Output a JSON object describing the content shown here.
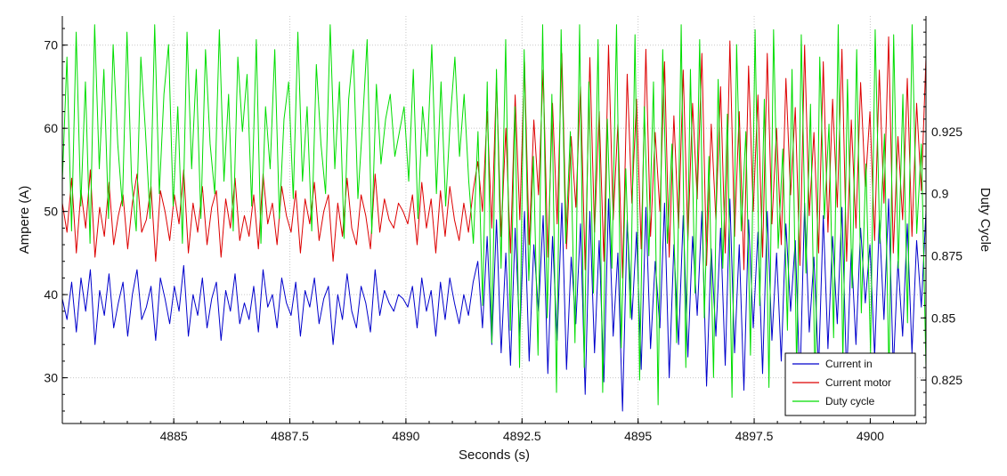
{
  "chart_data": {
    "type": "line",
    "xlabel": "Seconds (s)",
    "ylabel_left": "Ampere (A)",
    "ylabel_right": "Duty Cycle",
    "xlim": [
      4882.6,
      4901.2
    ],
    "ylim_left": [
      24.5,
      73.5
    ],
    "ylim_right": [
      0.8075,
      0.9715
    ],
    "x_ticks": [
      4885,
      4887.5,
      4890,
      4892.5,
      4895,
      4897.5,
      4900
    ],
    "x_tick_labels": [
      "4885",
      "4887.5",
      "4890",
      "4892.5",
      "4895",
      "4897.5",
      "4900"
    ],
    "y_left_ticks": [
      30,
      40,
      50,
      60,
      70
    ],
    "y_left_tick_labels": [
      "30",
      "40",
      "50",
      "60",
      "70"
    ],
    "y_right_ticks": [
      0.825,
      0.85,
      0.875,
      0.9,
      0.925
    ],
    "y_right_tick_labels": [
      "0.825",
      "0.85",
      "0.875",
      "0.9",
      "0.925"
    ],
    "grid": true,
    "legend_position": "bottom-right",
    "series": [
      {
        "name": "Current in",
        "color": "#0000cc",
        "axis": "left",
        "x_start": 4882.6,
        "x_end": 4901.2,
        "values": [
          39.5,
          37.0,
          41.5,
          35.5,
          42.0,
          38.0,
          43.0,
          34.0,
          40.5,
          37.5,
          42.5,
          36.0,
          39.0,
          41.5,
          35.0,
          40.0,
          43.0,
          37.0,
          38.5,
          41.0,
          34.5,
          42.0,
          39.5,
          36.5,
          41.0,
          38.0,
          43.5,
          35.0,
          40.0,
          37.5,
          42.0,
          36.0,
          39.5,
          41.5,
          34.5,
          40.5,
          38.0,
          42.5,
          36.5,
          39.0,
          37.0,
          41.0,
          35.5,
          43.0,
          38.5,
          40.0,
          36.0,
          42.0,
          39.0,
          37.5,
          41.5,
          35.0,
          40.5,
          38.5,
          42.0,
          36.5,
          39.5,
          41.0,
          34.0,
          40.0,
          37.0,
          42.5,
          38.0,
          36.0,
          41.0,
          39.0,
          35.5,
          43.0,
          37.5,
          40.5,
          39.0,
          38.0,
          40.0,
          39.5,
          38.5,
          41.0,
          36.0,
          42.0,
          38.0,
          40.5,
          35.0,
          41.5,
          37.0,
          42.0,
          39.0,
          36.5,
          40.0,
          37.5,
          41.5,
          44.0,
          36.0,
          47.0,
          34.0,
          49.0,
          33.0,
          45.0,
          31.5,
          48.0,
          35.0,
          50.0,
          32.0,
          46.0,
          38.0,
          49.5,
          30.5,
          47.0,
          34.5,
          51.0,
          31.0,
          44.5,
          36.5,
          48.5,
          28.0,
          50.0,
          33.0,
          46.5,
          29.5,
          51.5,
          35.0,
          45.0,
          26.0,
          49.0,
          37.0,
          47.5,
          31.0,
          50.5,
          33.5,
          44.0,
          36.0,
          51.0,
          30.0,
          46.0,
          34.0,
          49.5,
          32.5,
          47.0,
          37.5,
          50.0,
          29.0,
          45.5,
          35.0,
          48.0,
          31.5,
          51.5,
          33.0,
          46.0,
          28.5,
          49.0,
          36.0,
          47.5,
          30.5,
          50.0,
          34.5,
          45.0,
          32.0,
          48.5,
          38.0,
          46.5,
          29.0,
          51.0,
          35.5,
          44.5,
          31.0,
          49.5,
          33.5,
          47.0,
          36.5,
          50.5,
          30.0,
          45.5,
          34.0,
          48.0,
          39.0,
          46.0,
          32.5,
          49.0,
          37.0,
          51.5,
          31.0,
          44.0,
          35.0,
          48.5,
          33.0,
          46.5,
          38.5,
          50.0
        ]
      },
      {
        "name": "Current motor",
        "color": "#dd0000",
        "axis": "left",
        "x_start": 4882.6,
        "x_end": 4901.2,
        "values": [
          51.0,
          47.5,
          54.0,
          45.0,
          52.5,
          48.0,
          55.0,
          44.5,
          50.5,
          47.0,
          53.5,
          46.0,
          49.5,
          52.0,
          45.5,
          51.0,
          54.5,
          47.5,
          49.0,
          53.0,
          44.0,
          52.5,
          50.0,
          46.5,
          52.0,
          48.5,
          55.0,
          45.0,
          51.0,
          47.5,
          53.0,
          46.0,
          50.5,
          52.5,
          44.5,
          51.5,
          48.0,
          54.0,
          46.5,
          49.5,
          47.0,
          52.0,
          45.5,
          54.5,
          48.5,
          51.0,
          46.0,
          53.0,
          49.5,
          47.5,
          52.5,
          45.0,
          51.5,
          48.5,
          53.5,
          46.5,
          50.0,
          52.0,
          44.0,
          51.0,
          47.0,
          54.0,
          48.0,
          46.0,
          52.0,
          49.5,
          45.5,
          54.5,
          47.5,
          51.5,
          49.0,
          48.0,
          51.0,
          50.0,
          48.5,
          52.0,
          46.0,
          53.5,
          48.0,
          51.5,
          45.0,
          52.5,
          47.0,
          53.0,
          49.0,
          46.5,
          51.0,
          47.5,
          52.5,
          56.0,
          50.0,
          62.0,
          48.0,
          66.0,
          47.0,
          60.0,
          45.0,
          64.0,
          49.0,
          68.0,
          46.0,
          61.0,
          52.0,
          67.0,
          44.5,
          63.0,
          48.5,
          69.0,
          45.5,
          59.0,
          50.5,
          65.0,
          43.0,
          68.5,
          47.5,
          62.0,
          44.0,
          70.0,
          49.0,
          60.5,
          42.0,
          66.5,
          51.0,
          63.5,
          45.5,
          69.5,
          47.0,
          59.5,
          50.0,
          68.0,
          44.5,
          61.5,
          48.0,
          67.0,
          46.5,
          63.0,
          51.5,
          69.0,
          43.5,
          60.5,
          49.0,
          65.0,
          45.0,
          70.5,
          47.0,
          62.0,
          43.0,
          67.5,
          50.0,
          64.0,
          44.5,
          69.0,
          48.5,
          60.0,
          46.0,
          66.0,
          52.0,
          62.5,
          43.5,
          70.0,
          49.5,
          59.5,
          45.0,
          68.0,
          47.5,
          63.5,
          50.5,
          69.5,
          44.0,
          61.0,
          48.0,
          65.5,
          53.0,
          62.0,
          46.5,
          67.0,
          51.0,
          71.0,
          45.0,
          59.0,
          49.0,
          66.0,
          47.0,
          63.0,
          52.5,
          68.5
        ]
      },
      {
        "name": "Duty cycle",
        "color": "#00dd00",
        "axis": "right",
        "x_start": 4882.6,
        "x_end": 4901.2,
        "values": [
          0.905,
          0.955,
          0.885,
          0.965,
          0.895,
          0.945,
          0.88,
          0.968,
          0.91,
          0.95,
          0.89,
          0.96,
          0.92,
          0.895,
          0.965,
          0.905,
          0.885,
          0.955,
          0.925,
          0.89,
          0.968,
          0.9,
          0.94,
          0.96,
          0.895,
          0.935,
          0.88,
          0.965,
          0.91,
          0.95,
          0.89,
          0.958,
          0.92,
          0.9,
          0.966,
          0.905,
          0.94,
          0.885,
          0.955,
          0.925,
          0.948,
          0.895,
          0.962,
          0.88,
          0.935,
          0.91,
          0.958,
          0.89,
          0.93,
          0.945,
          0.898,
          0.965,
          0.905,
          0.935,
          0.885,
          0.952,
          0.92,
          0.9,
          0.968,
          0.91,
          0.945,
          0.882,
          0.938,
          0.958,
          0.898,
          0.928,
          0.962,
          0.884,
          0.944,
          0.912,
          0.93,
          0.94,
          0.915,
          0.925,
          0.935,
          0.905,
          0.95,
          0.89,
          0.935,
          0.915,
          0.96,
          0.9,
          0.945,
          0.895,
          0.93,
          0.955,
          0.915,
          0.94,
          0.905,
          0.88,
          0.925,
          0.855,
          0.945,
          0.84,
          0.95,
          0.87,
          0.962,
          0.845,
          0.935,
          0.83,
          0.958,
          0.865,
          0.915,
          0.835,
          0.968,
          0.85,
          0.94,
          0.82,
          0.966,
          0.88,
          0.925,
          0.84,
          0.968,
          0.83,
          0.945,
          0.86,
          0.962,
          0.82,
          0.93,
          0.87,
          0.968,
          0.838,
          0.91,
          0.85,
          0.964,
          0.825,
          0.935,
          0.875,
          0.945,
          0.815,
          0.958,
          0.88,
          0.92,
          0.84,
          0.968,
          0.83,
          0.95,
          0.86,
          0.962,
          0.85,
          0.915,
          0.826,
          0.946,
          0.87,
          0.932,
          0.818,
          0.96,
          0.885,
          0.925,
          0.835,
          0.966,
          0.855,
          0.938,
          0.822,
          0.966,
          0.878,
          0.918,
          0.845,
          0.95,
          0.828,
          0.964,
          0.868,
          0.936,
          0.82,
          0.955,
          0.89,
          0.928,
          0.842,
          0.968,
          0.832,
          0.946,
          0.862,
          0.958,
          0.852,
          0.912,
          0.836,
          0.966,
          0.88,
          0.924,
          0.826,
          0.964,
          0.87,
          0.94,
          0.848,
          0.968,
          0.884,
          0.92,
          0.83
        ]
      }
    ]
  }
}
